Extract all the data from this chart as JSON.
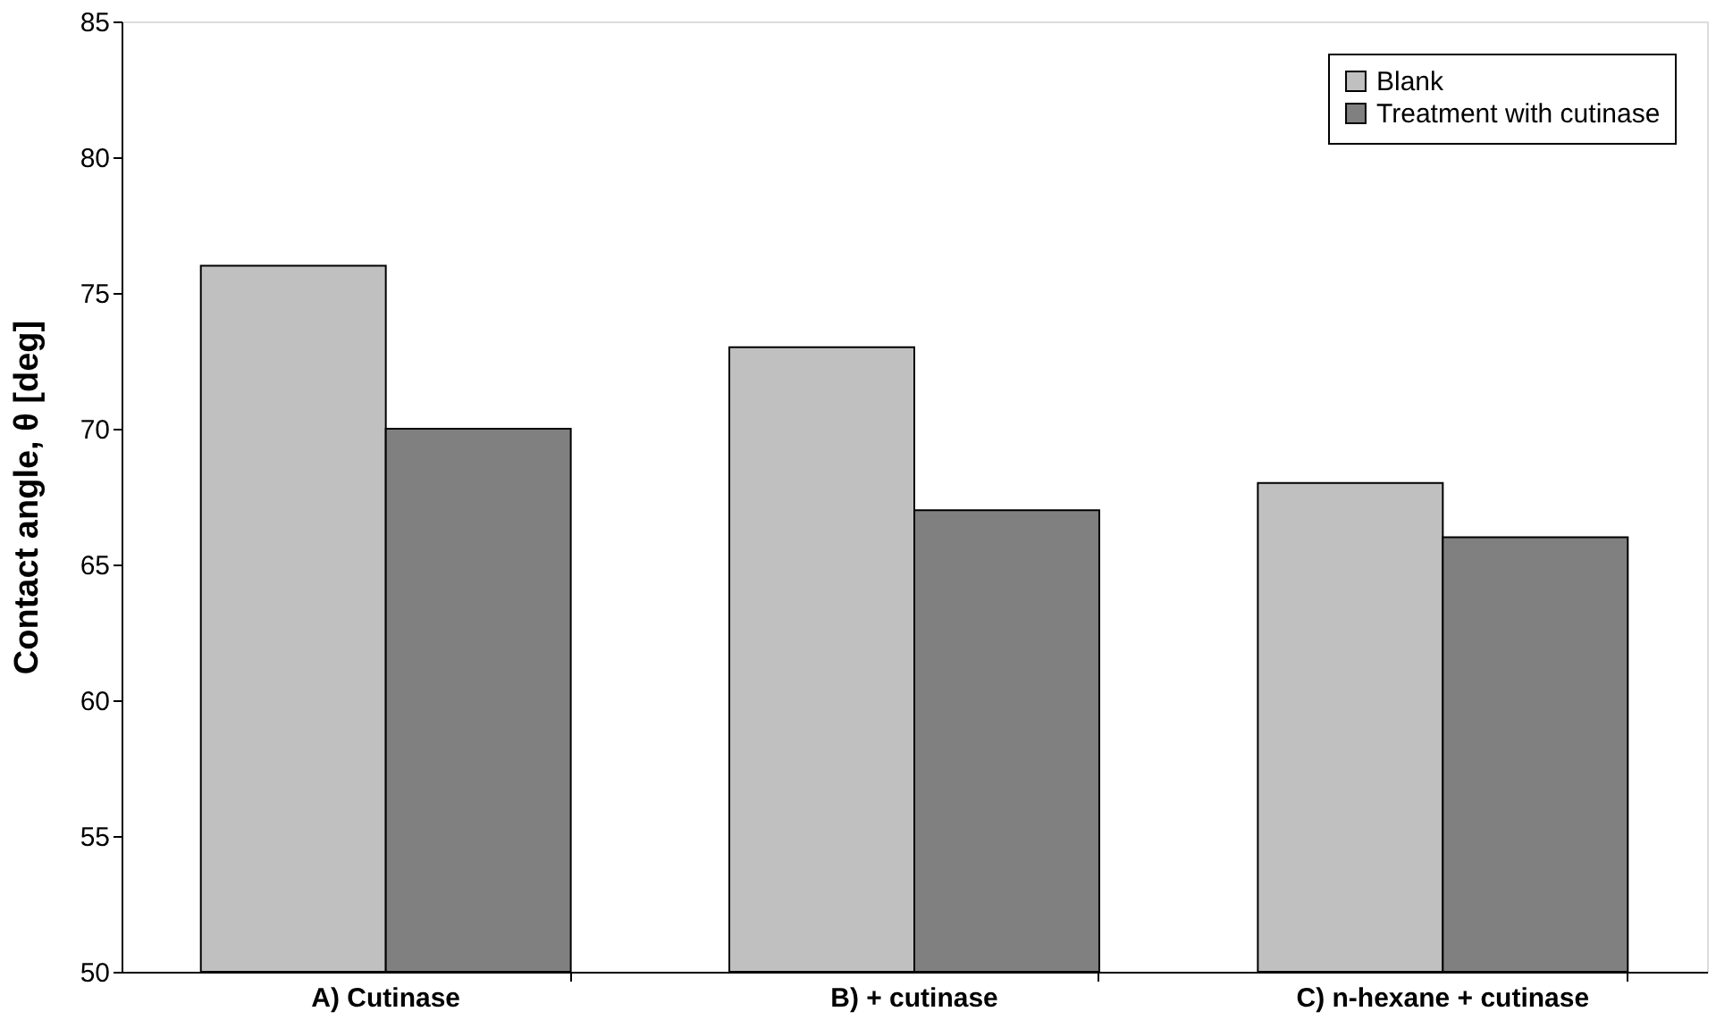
{
  "chart_data": {
    "type": "bar",
    "ylabel": "Contact angle, θ [deg]",
    "categories": [
      "A) Cutinase",
      "B) + cutinase",
      "C) n-hexane + cutinase"
    ],
    "series": [
      {
        "name": "Blank",
        "color": "#c0c0c0",
        "values": [
          76,
          73,
          68
        ]
      },
      {
        "name": "Treatment with cutinase",
        "color": "#808080",
        "values": [
          70,
          67,
          66
        ]
      }
    ],
    "ylim": [
      50,
      85
    ],
    "yticks": [
      50,
      55,
      60,
      65,
      70,
      75,
      80,
      85
    ],
    "grid": false,
    "legend": "top right"
  }
}
